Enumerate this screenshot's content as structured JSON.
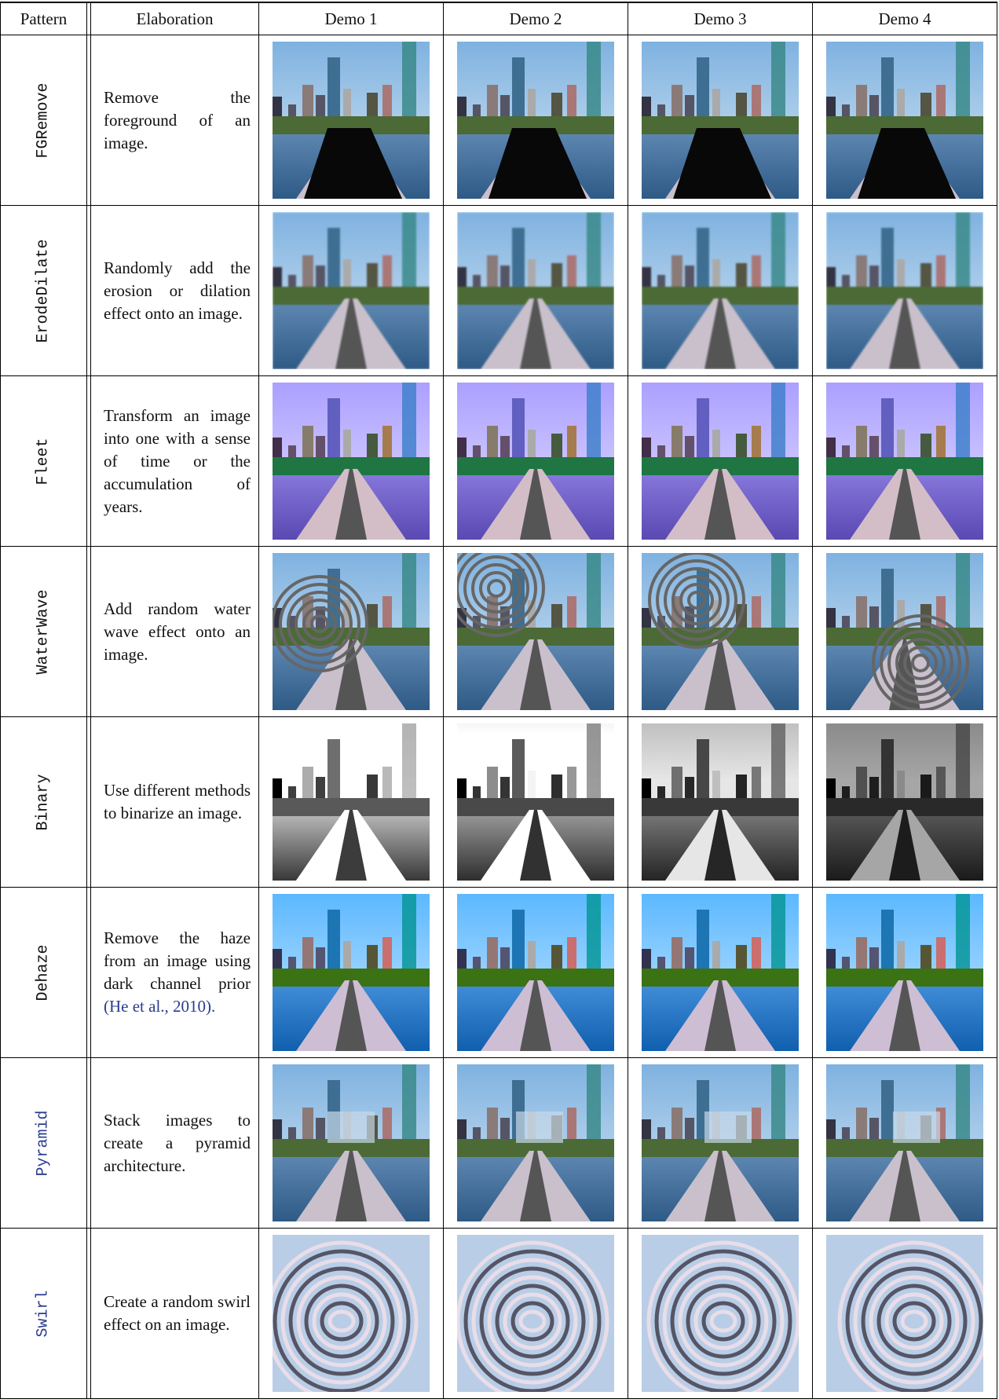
{
  "table": {
    "header": [
      "Pattern",
      "Elaboration",
      "Demo 1",
      "Demo 2",
      "Demo 3",
      "Demo 4"
    ],
    "rows": [
      {
        "pattern": "FGRemove",
        "elaboration": "Remove the foreground of an image."
      },
      {
        "pattern": "ErodeDilate",
        "elaboration": "Randomly add the erosion or dilation effect onto an image."
      },
      {
        "pattern": "Fleet",
        "elaboration": "Transform an image into one with a sense of time or the accumulation of years."
      },
      {
        "pattern": "WaterWave",
        "elaboration": "Add random water wave effect onto an image."
      },
      {
        "pattern": "Binary",
        "elaboration": "Use different methods to binarize an image."
      },
      {
        "pattern": "Dehaze",
        "elaboration": "Remove the haze from an image using dark channel prior",
        "citation": "(He et al., 2010)."
      },
      {
        "pattern": "Pyramid",
        "elaboration": "Stack images to create a pyramid architecture."
      },
      {
        "pattern": "Swirl",
        "elaboration": "Create a random swirl effect on an image."
      }
    ]
  }
}
